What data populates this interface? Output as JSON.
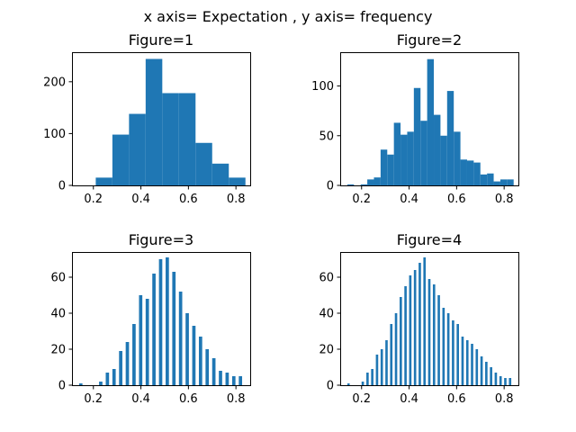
{
  "suptitle": "x axis= Expectation , y axis= frequency",
  "colors": {
    "bar": "#1f77b4"
  },
  "chart_data": [
    {
      "type": "bar",
      "title": "Figure=1",
      "xlim": [
        0.11,
        0.86
      ],
      "ylim": [
        0,
        257
      ],
      "xticks": [
        0.2,
        0.4,
        0.6,
        0.8
      ],
      "yticks": [
        0,
        100,
        200
      ],
      "bin_edges": [
        0.14,
        0.21,
        0.28,
        0.35,
        0.42,
        0.49,
        0.56,
        0.63,
        0.7,
        0.77,
        0.84
      ],
      "values": [
        0,
        15,
        98,
        138,
        244,
        178,
        178,
        82,
        42,
        15
      ]
    },
    {
      "type": "bar",
      "title": "Figure=2",
      "xlim": [
        0.11,
        0.86
      ],
      "ylim": [
        0,
        134
      ],
      "xticks": [
        0.2,
        0.4,
        0.6,
        0.8
      ],
      "yticks": [
        0,
        50,
        100
      ],
      "bin_edges": [
        0.14,
        0.168,
        0.196,
        0.224,
        0.252,
        0.28,
        0.308,
        0.336,
        0.364,
        0.392,
        0.42,
        0.448,
        0.476,
        0.504,
        0.532,
        0.56,
        0.588,
        0.616,
        0.644,
        0.672,
        0.7,
        0.728,
        0.756,
        0.784,
        0.812,
        0.84
      ],
      "values": [
        1,
        0,
        1,
        6,
        8,
        36,
        31,
        63,
        51,
        54,
        98,
        65,
        127,
        71,
        50,
        95,
        54,
        26,
        25,
        23,
        11,
        12,
        4,
        6,
        6
      ]
    },
    {
      "type": "bar",
      "title": "Figure=3",
      "xlim": [
        0.11,
        0.86
      ],
      "ylim": [
        0,
        74
      ],
      "xticks": [
        0.2,
        0.4,
        0.6,
        0.8
      ],
      "yticks": [
        0,
        20,
        40,
        60
      ],
      "bin_edges": [
        0.14,
        0.154,
        0.168,
        0.182,
        0.196,
        0.21,
        0.224,
        0.238,
        0.252,
        0.266,
        0.28,
        0.294,
        0.308,
        0.322,
        0.336,
        0.35,
        0.364,
        0.378,
        0.392,
        0.406,
        0.42,
        0.434,
        0.448,
        0.462,
        0.476,
        0.49,
        0.504,
        0.518,
        0.532,
        0.546,
        0.56,
        0.574,
        0.588,
        0.602,
        0.616,
        0.63,
        0.644,
        0.658,
        0.672,
        0.686,
        0.7,
        0.714,
        0.728,
        0.742,
        0.756,
        0.77,
        0.784,
        0.798,
        0.812,
        0.826,
        0.84
      ],
      "values": [
        1,
        0,
        0,
        0,
        0,
        0,
        2,
        0,
        7,
        0,
        9,
        0,
        19,
        0,
        24,
        0,
        34,
        0,
        50,
        0,
        48,
        0,
        62,
        0,
        70,
        0,
        71,
        0,
        63,
        0,
        52,
        0,
        40,
        0,
        33,
        0,
        27,
        0,
        20,
        0,
        15,
        0,
        8,
        0,
        7,
        0,
        5,
        0,
        5,
        0
      ]
    },
    {
      "type": "bar",
      "title": "Figure=4",
      "xlim": [
        0.11,
        0.86
      ],
      "ylim": [
        0,
        74
      ],
      "xticks": [
        0.2,
        0.4,
        0.6,
        0.8
      ],
      "yticks": [
        0,
        20,
        40,
        60
      ],
      "bin_edges": [
        0.14,
        0.15,
        0.16,
        0.17,
        0.18,
        0.19,
        0.2,
        0.21,
        0.22,
        0.23,
        0.24,
        0.25,
        0.26,
        0.27,
        0.28,
        0.29,
        0.3,
        0.31,
        0.32,
        0.33,
        0.34,
        0.35,
        0.36,
        0.37,
        0.38,
        0.39,
        0.4,
        0.41,
        0.42,
        0.43,
        0.44,
        0.45,
        0.46,
        0.47,
        0.48,
        0.49,
        0.5,
        0.51,
        0.52,
        0.53,
        0.54,
        0.55,
        0.56,
        0.57,
        0.58,
        0.59,
        0.6,
        0.61,
        0.62,
        0.63,
        0.64,
        0.65,
        0.66,
        0.67,
        0.68,
        0.69,
        0.7,
        0.71,
        0.72,
        0.73,
        0.74,
        0.75,
        0.76,
        0.77,
        0.78,
        0.79,
        0.8,
        0.81,
        0.82,
        0.83,
        0.84
      ],
      "values": [
        1,
        0,
        0,
        0,
        0,
        0,
        2,
        0,
        7,
        0,
        9,
        0,
        17,
        0,
        20,
        0,
        25,
        0,
        34,
        0,
        40,
        0,
        49,
        0,
        55,
        0,
        61,
        0,
        64,
        0,
        68,
        0,
        71,
        0,
        59,
        0,
        56,
        0,
        50,
        0,
        43,
        0,
        40,
        0,
        36,
        0,
        34,
        0,
        27,
        0,
        25,
        0,
        23,
        0,
        20,
        0,
        16,
        0,
        13,
        0,
        10,
        0,
        7,
        0,
        5,
        0,
        4,
        0,
        4,
        0
      ]
    }
  ]
}
